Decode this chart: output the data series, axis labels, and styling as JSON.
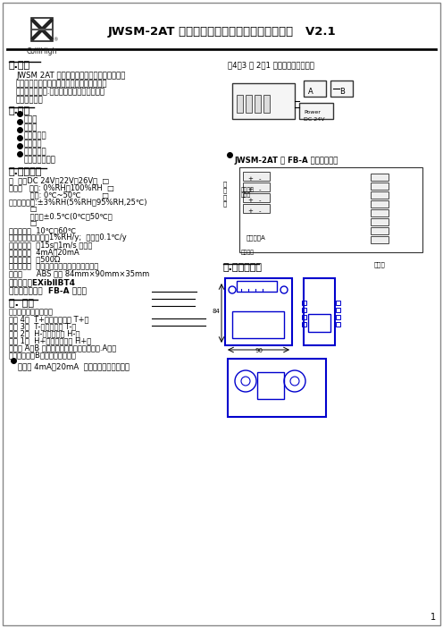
{
  "title": "JWSM-2AT 系列防爆型温湿度变送器使用说明书   V2.1",
  "bg_color": "#ffffff",
  "text_color": "#000000",
  "border_color": "#000000",
  "header_line_color": "#000000",
  "logo_text": "ColliHigh",
  "section1_title": "一.用途",
  "section1_body": "    JWSM 2AT 型防爆产品为传感、变送一体化设\n    计，用于特殊易爆环境的测量，符合国家防爆\n    标准并检验合格.可用于易燃易爆的场所的温\n    湿度的测量。",
  "section2_title": "二.特点",
  "section2_items": [
    "精度高",
    "低漂移",
    "响应速度快",
    "性能稳定",
    "使用寿命长",
    "抗干扰能力强。"
  ],
  "section3_title": "三.技术参数",
  "section3_lines": [
    "供  电：DC 24V（22V～26V）  □  ___________",
    "量程：   湿度: 0%RH～100%RH  □  _________",
    "         温度: 0℃~50℃         □  _________",
    "准确度：湿度:±3%RH(5%RH～95%RH,25℃)",
    "         □  __________________",
    "         温度：±0.5℃(0℃～50℃）",
    "         □  __________________",
    "工作温度：  10℃～60℃",
    "长期稳定性：湿度＜1%RH/y;  温度＜0.1℃/y",
    "响应时间：  ＜15s（1m/s 风速）",
    "输出信号：  4mA～20mA",
    "负载能力：  ＜500Ω",
    "安装方式：  壁挂式、葫芦孔或螺丝固定墙面",
    "外壳：      ABS 白色 84mm×90mm×35mm"
  ],
  "section3_bold": [
    "防爆级别：EXibⅡBT4",
    "配套关联设备：  FB-A 安全栅"
  ],
  "section4_title": "四. 接线",
  "section4_lines": [
    "出厂测试线颜色默认为",
    "端子 4：  T+（温度供电正 T+）",
    "端子 3：  T-（温度输出 T-）",
    "端子 2：  H-（湿度输出 H-）",
    "端子 1：  H+（湿度供电正 H+）",
    "图例中 A、B 为显示仪表、执行器或采集卡.A路对",
    "应湿度输出，B路对应温度输出。"
  ],
  "bullet4_text": "两线制 4mA～20mA  电流远传可以独立供电",
  "right_top_note": "（4、3 和 2、1 两路信号彼此隔离）",
  "section5_title": "五.外形尺寸图",
  "right_bullet2": "JWSM-2AT 和 FB-A 安全栅的连线",
  "accent_color": "#1e3a8a",
  "blue_color": "#0000cd"
}
